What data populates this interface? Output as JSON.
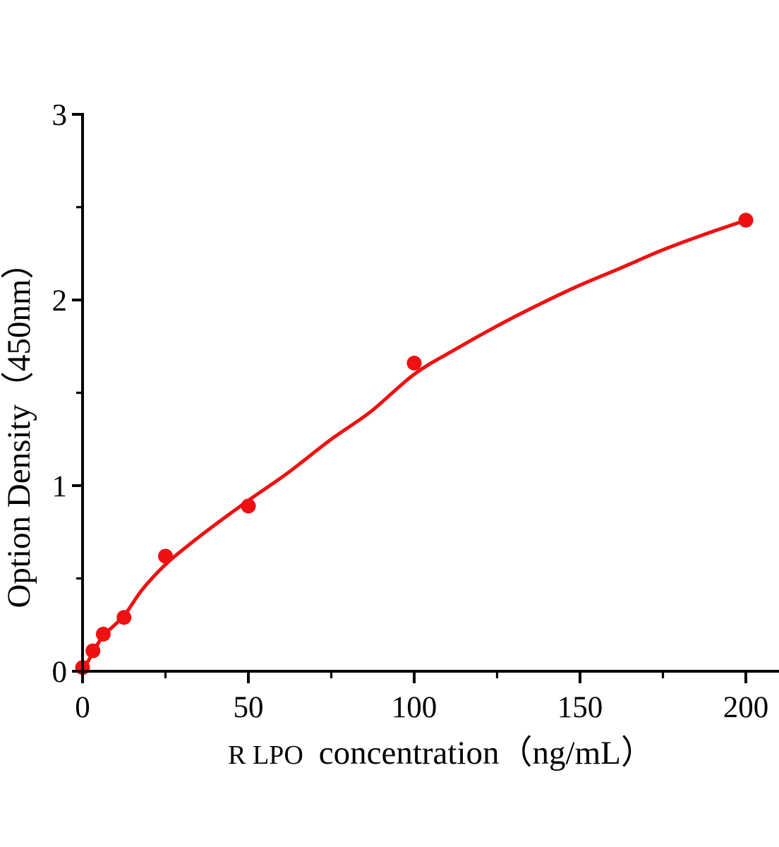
{
  "figure": {
    "background": "#ffffff",
    "accent_color": "#ee1111",
    "axis_color": "#000000"
  },
  "chart_data": {
    "type": "scatter",
    "title": "",
    "xlabel_prefix": "R LPO",
    "xlabel_main": "concentration（ng/mL）",
    "ylabel": "Option Density（450nm）",
    "xlim": [
      0,
      210
    ],
    "ylim": [
      0,
      3
    ],
    "grid": false,
    "legend_position": "none",
    "x_major_ticks": [
      0,
      50,
      100,
      150,
      200
    ],
    "x_minor_ticks": [
      25,
      75,
      125,
      175
    ],
    "y_major_ticks": [
      0,
      1,
      2,
      3
    ],
    "y_minor_ticks": [
      0.5,
      1.5,
      2.5
    ],
    "points": [
      {
        "x": 0,
        "y": 0.02
      },
      {
        "x": 3.125,
        "y": 0.11
      },
      {
        "x": 6.25,
        "y": 0.2
      },
      {
        "x": 12.5,
        "y": 0.29
      },
      {
        "x": 25,
        "y": 0.62
      },
      {
        "x": 50,
        "y": 0.89
      },
      {
        "x": 100,
        "y": 1.66
      },
      {
        "x": 200,
        "y": 2.43
      }
    ],
    "fit_curve": [
      [
        0,
        0.0
      ],
      [
        3.125,
        0.1
      ],
      [
        6.25,
        0.19
      ],
      [
        12.5,
        0.3
      ],
      [
        18,
        0.44
      ],
      [
        25,
        0.575
      ],
      [
        32,
        0.68
      ],
      [
        40,
        0.79
      ],
      [
        50,
        0.92
      ],
      [
        62,
        1.07
      ],
      [
        75,
        1.25
      ],
      [
        87,
        1.4
      ],
      [
        100,
        1.6
      ],
      [
        112,
        1.73
      ],
      [
        125,
        1.86
      ],
      [
        137,
        1.97
      ],
      [
        150,
        2.08
      ],
      [
        162,
        2.17
      ],
      [
        175,
        2.27
      ],
      [
        187,
        2.35
      ],
      [
        200,
        2.43
      ]
    ]
  }
}
